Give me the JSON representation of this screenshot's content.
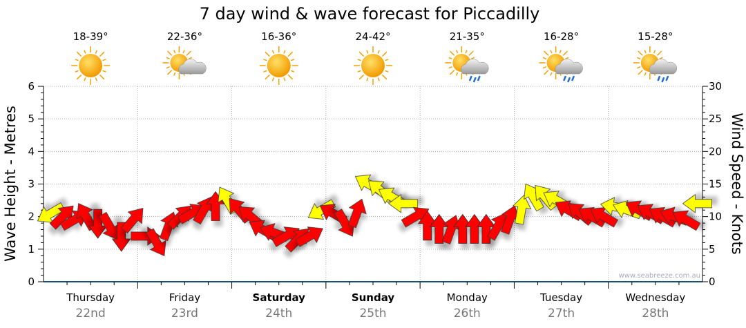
{
  "chart_data": {
    "type": "scatter",
    "title": "7 day wind & wave forecast for Piccadilly",
    "ylabel_left": "Wave Height - Metres",
    "ylabel_right": "Wind Speed - Knots",
    "ylim_left": [
      0,
      6
    ],
    "ylim_right": [
      0,
      30
    ],
    "yticks_left": [
      "0",
      "1",
      "2",
      "3",
      "4",
      "5",
      "6"
    ],
    "yticks_right": [
      "0",
      "5",
      "10",
      "15",
      "20",
      "25",
      "30"
    ],
    "grid": true,
    "watermark": "www.seabreeze.com.au",
    "days": [
      {
        "name": "Thursday",
        "date": "22nd",
        "temp": "18-39°",
        "icon": "sun",
        "bold": false
      },
      {
        "name": "Friday",
        "date": "23rd",
        "temp": "22-36°",
        "icon": "sun-cloud",
        "bold": false
      },
      {
        "name": "Saturday",
        "date": "24th",
        "temp": "16-36°",
        "icon": "sun",
        "bold": true
      },
      {
        "name": "Sunday",
        "date": "25th",
        "temp": "24-42°",
        "icon": "sun",
        "bold": true
      },
      {
        "name": "Monday",
        "date": "26th",
        "temp": "21-35°",
        "icon": "sun-cloud-rain",
        "bold": false
      },
      {
        "name": "Tuesday",
        "date": "27th",
        "temp": "16-28°",
        "icon": "sun-cloud-rain",
        "bold": false
      },
      {
        "name": "Wednesday",
        "date": "28th",
        "temp": "15-28°",
        "icon": "sun-cloud-rain",
        "bold": false
      }
    ],
    "wind_interval_hours": 3,
    "wind_speed_knots": [
      10.5,
      10,
      9.5,
      10,
      9,
      8.5,
      7,
      9.5,
      7,
      6,
      8.5,
      10,
      10.5,
      11,
      11.5,
      12.5,
      11,
      10,
      8,
      7.5,
      7,
      6.5,
      7,
      11,
      10.5,
      9,
      10.5,
      15,
      14,
      13,
      12,
      10,
      8.5,
      8,
      8,
      8,
      8,
      8,
      8.5,
      9.5,
      11,
      13,
      13,
      12.5,
      11,
      10.5,
      10,
      10,
      11.5,
      11,
      11,
      10.5,
      10,
      10,
      9.5,
      12
    ],
    "wind_heading_deg": [
      240,
      45,
      60,
      330,
      180,
      150,
      180,
      40,
      90,
      150,
      20,
      45,
      60,
      30,
      0,
      330,
      320,
      310,
      300,
      290,
      60,
      45,
      60,
      240,
      300,
      150,
      20,
      300,
      310,
      300,
      270,
      60,
      0,
      0,
      20,
      0,
      0,
      0,
      30,
      20,
      10,
      330,
      320,
      300,
      300,
      310,
      300,
      300,
      280,
      290,
      300,
      300,
      300,
      290,
      300,
      270
    ],
    "wind_color": [
      "Y",
      "R",
      "R",
      "R",
      "R",
      "R",
      "R",
      "R",
      "R",
      "R",
      "R",
      "R",
      "R",
      "R",
      "R",
      "Y",
      "R",
      "R",
      "R",
      "R",
      "R",
      "R",
      "R",
      "Y",
      "R",
      "R",
      "R",
      "Y",
      "Y",
      "Y",
      "Y",
      "R",
      "R",
      "R",
      "R",
      "R",
      "R",
      "R",
      "R",
      "R",
      "Y",
      "Y",
      "Y",
      "Y",
      "R",
      "R",
      "R",
      "R",
      "Y",
      "Y",
      "R",
      "R",
      "R",
      "R",
      "R",
      "Y"
    ],
    "colors": {
      "R": "#ff0000",
      "Y": "#ffff00"
    }
  }
}
